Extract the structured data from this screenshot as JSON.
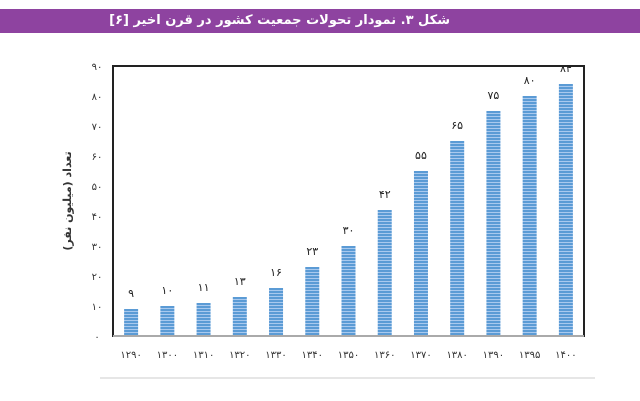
{
  "header": {
    "title": "شکل ۳. نمودار تحولات جمعیت کشور در قرن اخیر [۶]"
  },
  "colors": {
    "title_bar": "#8e43a0",
    "bar": "#5b9bd5",
    "bar_stripe": "#a9c9ee"
  },
  "chart_data": {
    "type": "bar",
    "title": "",
    "xlabel": "",
    "ylabel": "تعداد (میلیون نفر)",
    "ylim": [
      0,
      90
    ],
    "grid": false,
    "categories": [
      "۱۲۹۰",
      "۱۳۰۰",
      "۱۳۱۰",
      "۱۳۲۰",
      "۱۳۳۰",
      "۱۳۴۰",
      "۱۳۵۰",
      "۱۳۶۰",
      "۱۳۷۰",
      "۱۳۸۰",
      "۱۳۹۰",
      "۱۳۹۵",
      "۱۴۰۰"
    ],
    "values": [
      9,
      10,
      11,
      13,
      16,
      23,
      30,
      42,
      55,
      65,
      75,
      80,
      84
    ],
    "value_labels": [
      "۹",
      "۱۰",
      "۱۱",
      "۱۳",
      "۱۶",
      "۲۳",
      "۳۰",
      "۴۲",
      "۵۵",
      "۶۵",
      "۷۵",
      "۸۰",
      "۸۴"
    ],
    "y_ticks": [
      0,
      10,
      20,
      30,
      40,
      50,
      60,
      70,
      80,
      90
    ],
    "y_tick_labels": [
      "۰",
      "۱۰",
      "۲۰",
      "۳۰",
      "۴۰",
      "۵۰",
      "۶۰",
      "۷۰",
      "۸۰",
      "۹۰"
    ]
  }
}
